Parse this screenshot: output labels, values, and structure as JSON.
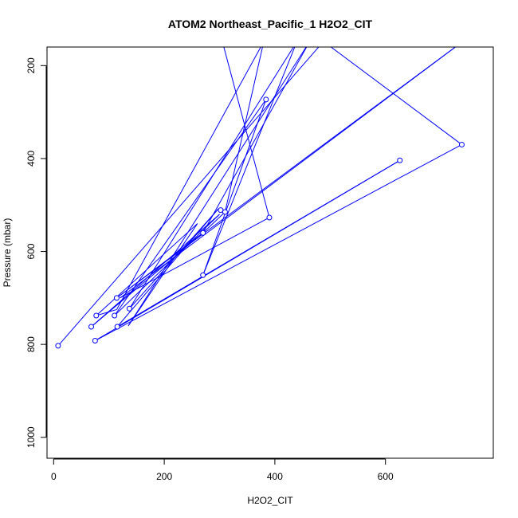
{
  "chart_data": {
    "type": "line",
    "title": "ATOM2 Northeast_Pacific_1 H2O2_CIT",
    "xlabel": "H2O2_CIT",
    "ylabel": "Pressure (mbar)",
    "xlim": [
      -12,
      795
    ],
    "ylim": [
      1045,
      160
    ],
    "x_ticks": [
      0,
      200,
      400,
      600
    ],
    "y_ticks": [
      200,
      400,
      600,
      800,
      1000
    ],
    "grid": false,
    "colors": {
      "series": "#0000ff",
      "axes": "#000000",
      "background": "#ffffff"
    },
    "series": [
      {
        "points": [
          {
            "x": 8,
            "y": 803
          },
          {
            "x": 488,
            "y": 148
          },
          {
            "x": 738,
            "y": 370
          },
          {
            "x": 75,
            "y": 792
          },
          {
            "x": 626,
            "y": 404
          },
          {
            "x": 115,
            "y": 762
          },
          {
            "x": 298,
            "y": 508
          },
          {
            "x": 137,
            "y": 723
          },
          {
            "x": 440,
            "y": 148
          },
          {
            "x": 270,
            "y": 651
          },
          {
            "x": 384,
            "y": 273
          },
          {
            "x": 110,
            "y": 738
          },
          {
            "x": 300,
            "y": 520
          },
          {
            "x": 68,
            "y": 762
          },
          {
            "x": 270,
            "y": 560
          },
          {
            "x": 463,
            "y": 148
          },
          {
            "x": 135,
            "y": 760
          },
          {
            "x": 260,
            "y": 540
          },
          {
            "x": 77,
            "y": 738
          },
          {
            "x": 114,
            "y": 725
          },
          {
            "x": 380,
            "y": 148
          },
          {
            "x": 310,
            "y": 515
          },
          {
            "x": 270,
            "y": 560
          },
          {
            "x": 114,
            "y": 700
          },
          {
            "x": 740,
            "y": 148
          },
          {
            "x": 120,
            "y": 700
          },
          {
            "x": 390,
            "y": 527
          },
          {
            "x": 305,
            "y": 148
          }
        ],
        "markers": [
          {
            "x": 8,
            "y": 803
          },
          {
            "x": 738,
            "y": 370
          },
          {
            "x": 75,
            "y": 792
          },
          {
            "x": 626,
            "y": 404
          },
          {
            "x": 115,
            "y": 762
          },
          {
            "x": 302,
            "y": 511
          },
          {
            "x": 137,
            "y": 723
          },
          {
            "x": 270,
            "y": 651
          },
          {
            "x": 384,
            "y": 273
          },
          {
            "x": 110,
            "y": 738
          },
          {
            "x": 310,
            "y": 515
          },
          {
            "x": 68,
            "y": 762
          },
          {
            "x": 270,
            "y": 560
          },
          {
            "x": 77,
            "y": 738
          },
          {
            "x": 114,
            "y": 700
          },
          {
            "x": 390,
            "y": 527
          }
        ]
      }
    ]
  }
}
